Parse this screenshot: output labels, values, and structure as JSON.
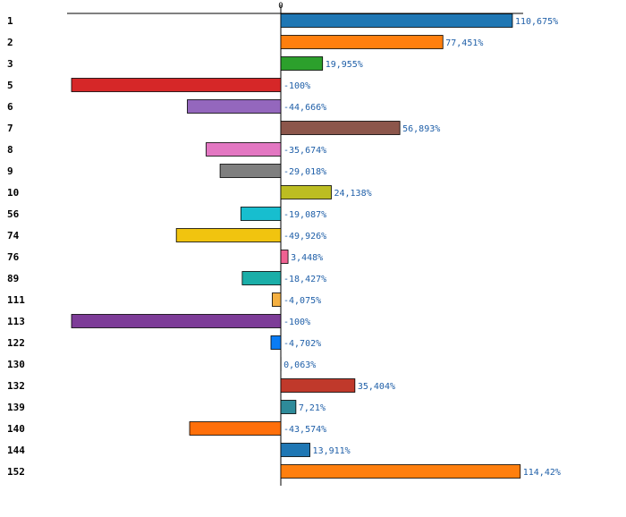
{
  "chart_data": {
    "type": "bar",
    "orientation": "horizontal",
    "title": "",
    "xlabel": "",
    "ylabel": "",
    "xlim": [
      -100,
      114.42
    ],
    "zero_tick_label": "0",
    "categories": [
      "1",
      "2",
      "3",
      "5",
      "6",
      "7",
      "8",
      "9",
      "10",
      "56",
      "74",
      "76",
      "89",
      "111",
      "113",
      "122",
      "130",
      "132",
      "139",
      "140",
      "144",
      "152"
    ],
    "values": [
      110.675,
      77.451,
      19.955,
      -100,
      -44.666,
      56.893,
      -35.674,
      -29.018,
      24.138,
      -19.087,
      -49.926,
      3.448,
      -18.427,
      -4.075,
      -100,
      -4.702,
      0.063,
      35.404,
      7.21,
      -43.574,
      13.911,
      114.42
    ],
    "value_labels": [
      "110,675%",
      "77,451%",
      "19,955%",
      "-100%",
      "-44,666%",
      "56,893%",
      "-35,674%",
      "-29,018%",
      "24,138%",
      "-19,087%",
      "-49,926%",
      "3,448%",
      "-18,427%",
      "-4,075%",
      "-100%",
      "-4,702%",
      "0,063%",
      "35,404%",
      "7,21%",
      "-43,574%",
      "13,911%",
      "114,42%"
    ],
    "colors": [
      "#1f77b4",
      "#ff7f0e",
      "#2ca02c",
      "#d62728",
      "#9467bd",
      "#8c564b",
      "#e377c2",
      "#7f7f7f",
      "#bcbd22",
      "#17becf",
      "#f1c40f",
      "#f06292",
      "#1aaea8",
      "#f5b041",
      "#7d3c98",
      "#0a7cf5",
      "#1f77b4",
      "#c0392b",
      "#2e8b9a",
      "#ff6f0a",
      "#1f77b4",
      "#ff7f0e"
    ],
    "label_color": "#1f5fa8"
  }
}
